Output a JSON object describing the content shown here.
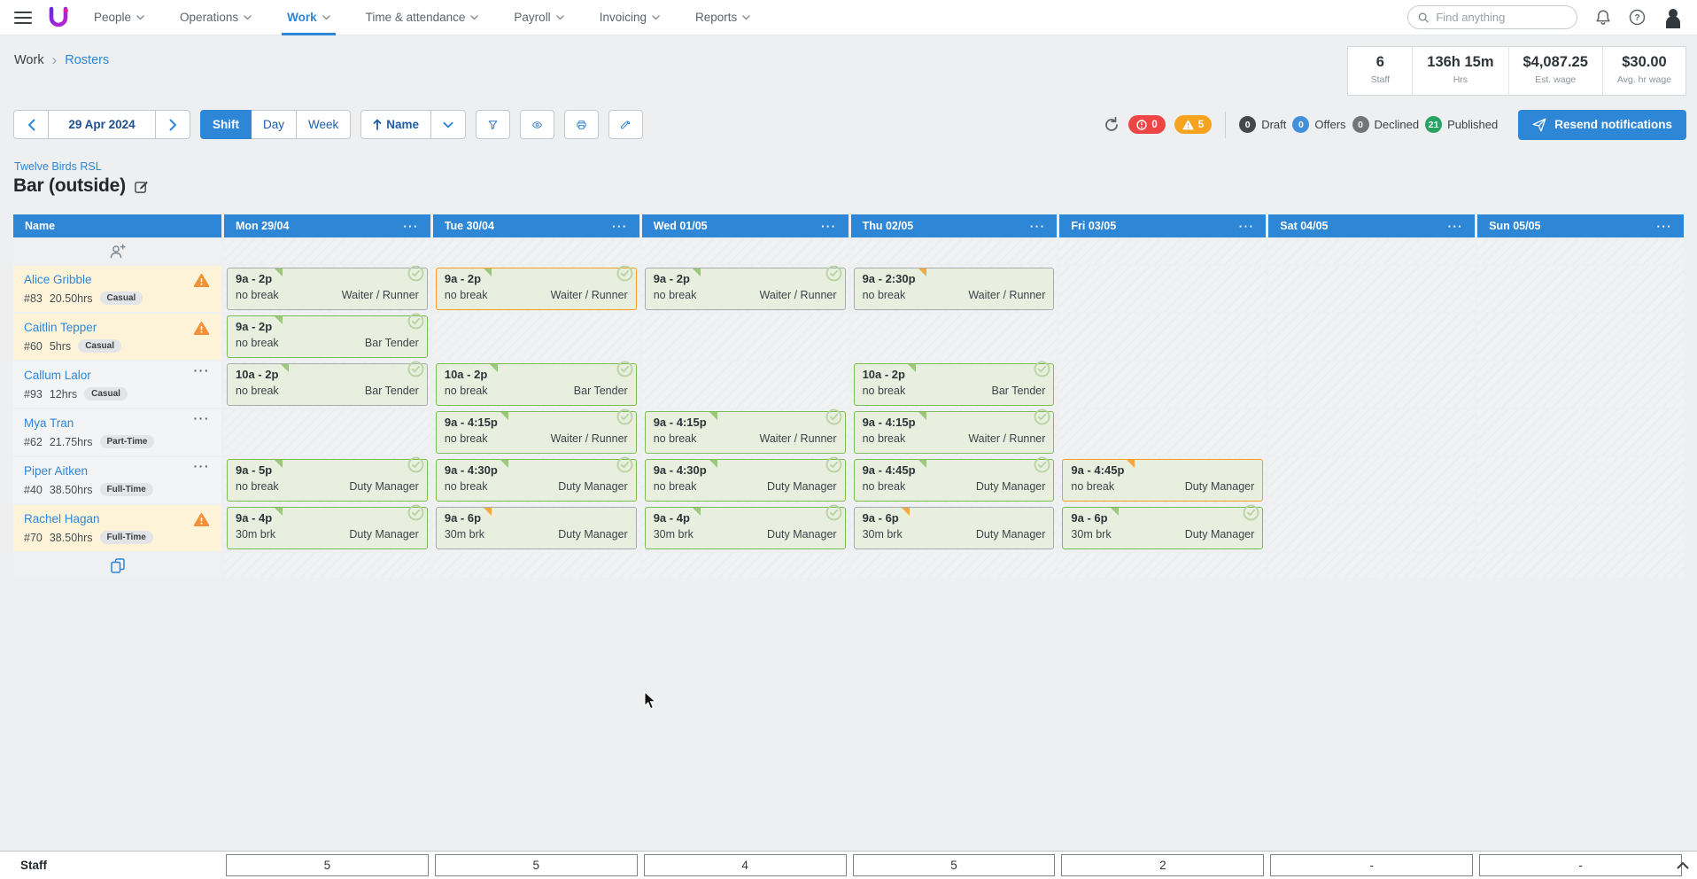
{
  "nav": {
    "items": [
      {
        "label": "People",
        "active": false
      },
      {
        "label": "Operations",
        "active": false
      },
      {
        "label": "Work",
        "active": true
      },
      {
        "label": "Time & attendance",
        "active": false
      },
      {
        "label": "Payroll",
        "active": false
      },
      {
        "label": "Invoicing",
        "active": false
      },
      {
        "label": "Reports",
        "active": false
      }
    ],
    "search_placeholder": "Find anything"
  },
  "breadcrumb": {
    "parent": "Work",
    "current": "Rosters"
  },
  "stats": [
    {
      "value": "6",
      "label": "Staff"
    },
    {
      "value": "136h 15m",
      "label": "Hrs"
    },
    {
      "value": "$4,087.25",
      "label": "Est. wage"
    },
    {
      "value": "$30.00",
      "label": "Avg. hr wage"
    }
  ],
  "toolbar": {
    "date": "29 Apr 2024",
    "views": [
      "Shift",
      "Day",
      "Week"
    ],
    "active_view": "Shift",
    "sort_label": "Name",
    "alerts": {
      "errors": "0",
      "warnings": "5"
    },
    "statuses": [
      {
        "count": "0",
        "label": "Draft",
        "color": "#43484d"
      },
      {
        "count": "0",
        "label": "Offers",
        "color": "#4190d9"
      },
      {
        "count": "0",
        "label": "Declined",
        "color": "#70757a"
      },
      {
        "count": "21",
        "label": "Published",
        "color": "#27a263"
      }
    ],
    "resend_label": "Resend notifications"
  },
  "roster": {
    "venue": "Twelve Birds RSL",
    "title": "Bar (outside)",
    "name_header": "Name",
    "days": [
      "Mon 29/04",
      "Tue 30/04",
      "Wed 01/05",
      "Thu 02/05",
      "Fri 03/05",
      "Sat 04/05",
      "Sun 05/05"
    ],
    "rows": [
      {
        "name": "Alice Gribble",
        "emp_id": "#83",
        "hours": "20.50hrs",
        "badge": "Casual",
        "flag": "warning",
        "shifts": {
          "0": {
            "time": "9a - 2p",
            "brk": "no break",
            "role": "Waiter / Runner",
            "border": "gray",
            "notch": "green",
            "check": true
          },
          "1": {
            "time": "9a - 2p",
            "brk": "no break",
            "role": "Waiter / Runner",
            "border": "orange",
            "notch": "green",
            "check": true
          },
          "2": {
            "time": "9a - 2p",
            "brk": "no break",
            "role": "Waiter / Runner",
            "border": "gray",
            "notch": "green",
            "check": true
          },
          "3": {
            "time": "9a - 2:30p",
            "brk": "no break",
            "role": "Waiter / Runner",
            "border": "gray",
            "notch": "orange",
            "check": false
          }
        }
      },
      {
        "name": "Caitlin Tepper",
        "emp_id": "#60",
        "hours": "5hrs",
        "badge": "Casual",
        "flag": "warning",
        "shifts": {
          "0": {
            "time": "9a - 2p",
            "brk": "no break",
            "role": "Bar Tender",
            "border": "green",
            "notch": "green",
            "check": true
          }
        }
      },
      {
        "name": "Callum Lalor",
        "emp_id": "#93",
        "hours": "12hrs",
        "badge": "Casual",
        "flag": "menu",
        "shifts": {
          "0": {
            "time": "10a - 2p",
            "brk": "no break",
            "role": "Bar Tender",
            "border": "gray",
            "notch": "green",
            "check": true
          },
          "1": {
            "time": "10a - 2p",
            "brk": "no break",
            "role": "Bar Tender",
            "border": "green",
            "notch": "green",
            "check": true
          },
          "3": {
            "time": "10a - 2p",
            "brk": "no break",
            "role": "Bar Tender",
            "border": "green",
            "notch": "green",
            "check": true
          }
        }
      },
      {
        "name": "Mya Tran",
        "emp_id": "#62",
        "hours": "21.75hrs",
        "badge": "Part-Time",
        "flag": "menu",
        "shifts": {
          "1": {
            "time": "9a - 4:15p",
            "brk": "no break",
            "role": "Waiter / Runner",
            "border": "green",
            "notch": "green",
            "check": true
          },
          "2": {
            "time": "9a - 4:15p",
            "brk": "no break",
            "role": "Waiter / Runner",
            "border": "green",
            "notch": "green",
            "check": true
          },
          "3": {
            "time": "9a - 4:15p",
            "brk": "no break",
            "role": "Waiter / Runner",
            "border": "green",
            "notch": "green",
            "check": true
          }
        }
      },
      {
        "name": "Piper Aitken",
        "emp_id": "#40",
        "hours": "38.50hrs",
        "badge": "Full-Time",
        "flag": "menu",
        "shifts": {
          "0": {
            "time": "9a - 5p",
            "brk": "no break",
            "role": "Duty Manager",
            "border": "green",
            "notch": "green",
            "check": true
          },
          "1": {
            "time": "9a - 4:30p",
            "brk": "no break",
            "role": "Duty Manager",
            "border": "green",
            "notch": "green",
            "check": true
          },
          "2": {
            "time": "9a - 4:30p",
            "brk": "no break",
            "role": "Duty Manager",
            "border": "green",
            "notch": "green",
            "check": true
          },
          "3": {
            "time": "9a - 4:45p",
            "brk": "no break",
            "role": "Duty Manager",
            "border": "green",
            "notch": "green",
            "check": true
          },
          "4": {
            "time": "9a - 4:45p",
            "brk": "no break",
            "role": "Duty Manager",
            "border": "orange",
            "notch": "orange",
            "check": false
          }
        }
      },
      {
        "name": "Rachel Hagan",
        "emp_id": "#70",
        "hours": "38.50hrs",
        "badge": "Full-Time",
        "flag": "warning",
        "shifts": {
          "0": {
            "time": "9a - 4p",
            "brk": "30m brk",
            "role": "Duty Manager",
            "border": "green",
            "notch": "green",
            "check": true
          },
          "1": {
            "time": "9a - 6p",
            "brk": "30m brk",
            "role": "Duty Manager",
            "border": "gray",
            "notch": "orange",
            "check": false
          },
          "2": {
            "time": "9a - 4p",
            "brk": "30m brk",
            "role": "Duty Manager",
            "border": "green",
            "notch": "green",
            "check": true
          },
          "3": {
            "time": "9a - 6p",
            "brk": "30m brk",
            "role": "Duty Manager",
            "border": "gray",
            "notch": "orange",
            "check": false
          },
          "4": {
            "time": "9a - 6p",
            "brk": "30m brk",
            "role": "Duty Manager",
            "border": "green",
            "notch": "green",
            "check": true
          }
        }
      }
    ],
    "totals": {
      "label": "Staff",
      "values": [
        "5",
        "5",
        "4",
        "5",
        "2",
        "-",
        "-"
      ]
    }
  },
  "colors": {
    "accent": "#2e86d6",
    "published_green": "#27a263",
    "alert_red": "#ee4545",
    "alert_orange": "#f6a41f",
    "shift_bg": "#e8efdf",
    "shift_border_green": "#7cbd4f",
    "shift_border_orange": "#f5a01c",
    "warn_row_bg": "#fcf3d8"
  }
}
